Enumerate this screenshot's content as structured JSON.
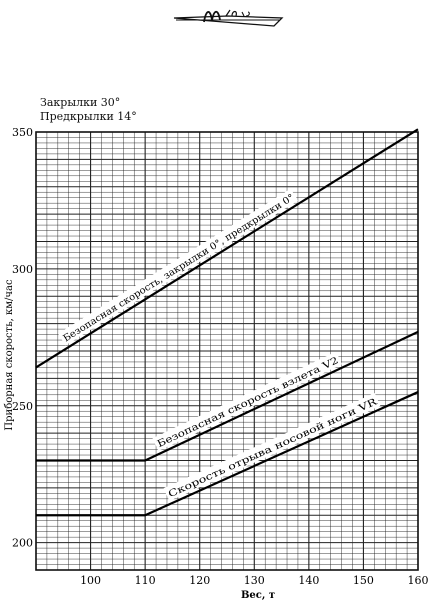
{
  "header": {
    "signature_text": "Ш 76-5"
  },
  "config": {
    "flaps": "Закрылки 30°",
    "slats": "Предкрылки 14°"
  },
  "chart_data": {
    "type": "line",
    "title": "",
    "xlabel": "Вес, т",
    "ylabel": "Приборная скорость, км/час",
    "xlim": [
      90,
      160
    ],
    "ylim": [
      190,
      350
    ],
    "x_ticks": [
      100,
      110,
      120,
      130,
      140,
      150,
      160
    ],
    "y_ticks": [
      200,
      250,
      300,
      350
    ],
    "grid": true,
    "series": [
      {
        "name": "Безопасная скорость, закрылки 0°, предкрылки 0°",
        "x": [
          90,
          160
        ],
        "y": [
          264,
          351
        ]
      },
      {
        "name": "Безопасная скорость взлета V2",
        "x": [
          90,
          110,
          160
        ],
        "y": [
          230,
          230,
          277
        ]
      },
      {
        "name": "Скорость отрыва носовой ноги VR",
        "x": [
          90,
          110,
          160
        ],
        "y": [
          210,
          210,
          255
        ]
      }
    ]
  }
}
